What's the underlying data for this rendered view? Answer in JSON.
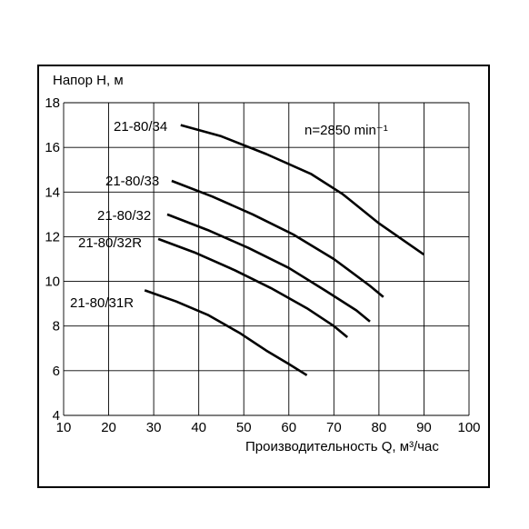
{
  "chart_data": {
    "type": "line",
    "ylabel": "Напор H, м",
    "xlabel": "Производительность Q, м³/час",
    "annotation": "n=2850 min⁻¹",
    "xlim": [
      10,
      100
    ],
    "ylim": [
      4,
      18
    ],
    "xticks": [
      10,
      20,
      30,
      40,
      50,
      60,
      70,
      80,
      90,
      100
    ],
    "yticks": [
      4,
      6,
      8,
      10,
      12,
      14,
      16,
      18
    ],
    "grid": true,
    "series": [
      {
        "name": "21-80/34",
        "x": [
          36,
          45,
          55,
          65,
          72,
          80,
          90
        ],
        "y": [
          17.0,
          16.5,
          15.7,
          14.8,
          13.9,
          12.6,
          11.2
        ]
      },
      {
        "name": "21-80/33",
        "x": [
          34,
          43,
          52,
          61,
          70,
          78,
          81
        ],
        "y": [
          14.5,
          13.8,
          13.0,
          12.1,
          11.0,
          9.8,
          9.3
        ]
      },
      {
        "name": "21-80/32",
        "x": [
          33,
          42,
          51,
          60,
          68,
          75,
          78
        ],
        "y": [
          13.0,
          12.3,
          11.5,
          10.6,
          9.6,
          8.7,
          8.2
        ]
      },
      {
        "name": "21-80/32R",
        "x": [
          31,
          39,
          48,
          56,
          64,
          70,
          73
        ],
        "y": [
          11.9,
          11.3,
          10.5,
          9.7,
          8.8,
          8.0,
          7.5
        ]
      },
      {
        "name": "21-80/31R",
        "x": [
          28,
          35,
          42,
          49,
          55,
          60,
          64
        ],
        "y": [
          9.6,
          9.1,
          8.5,
          7.7,
          6.9,
          6.3,
          5.8
        ]
      }
    ]
  }
}
